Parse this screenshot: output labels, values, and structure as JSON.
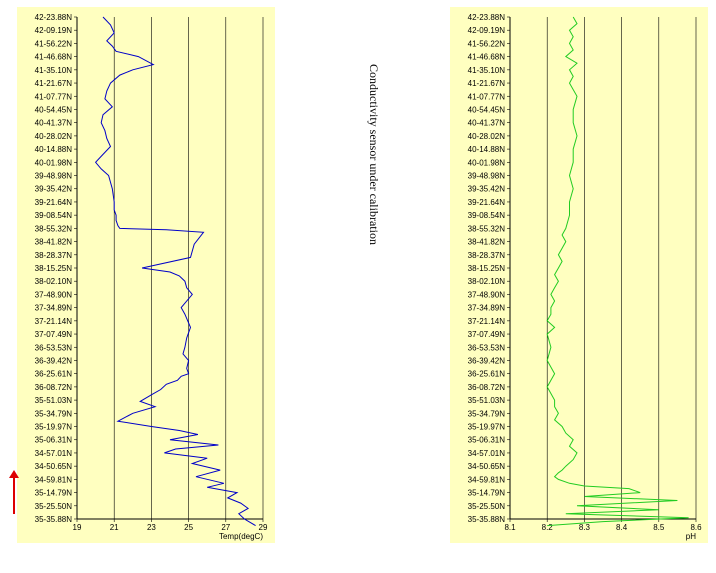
{
  "annotation": "Conductivity sensor under calibration",
  "colors": {
    "panel_bg": "#ffffc0",
    "temp_line": "#0000c8",
    "ph_line": "#22cc22",
    "arrow": "#dd0000",
    "grid": "#000000"
  },
  "chart_data": [
    {
      "type": "line",
      "orientation": "vertical-profile",
      "xlabel": "Temp(degC)",
      "xlim": [
        19,
        29
      ],
      "xticks": [
        "19",
        "21",
        "23",
        "25",
        "27",
        "29"
      ],
      "y_tick_labels": [
        "42-23.88N",
        "42-09.19N",
        "41-56.22N",
        "41-46.68N",
        "41-35.10N",
        "41-21.67N",
        "41-07.77N",
        "40-54.45N",
        "40-41.37N",
        "40-28.02N",
        "40-14.88N",
        "40-01.98N",
        "39-48.98N",
        "39-35.42N",
        "39-21.64N",
        "39-08.54N",
        "38-55.32N",
        "38-41.82N",
        "38-28.37N",
        "38-15.25N",
        "38-02.10N",
        "37-48.90N",
        "37-34.89N",
        "37-21.14N",
        "37-07.49N",
        "36-53.53N",
        "36-39.42N",
        "36-25.61N",
        "36-08.72N",
        "35-51.03N",
        "35-34.79N",
        "35-19.97N",
        "35-06.31N",
        "34-57.01N",
        "34-50.65N",
        "34-59.81N",
        "35-14.79N",
        "35-25.50N",
        "35-35.88N"
      ],
      "x": [
        20.4,
        20.8,
        21.0,
        20.6,
        20.9,
        21.1,
        22.3,
        23.1,
        22.0,
        21.3,
        20.8,
        20.6,
        20.5,
        20.9,
        20.4,
        20.3,
        20.5,
        20.6,
        20.8,
        20.4,
        20.0,
        20.3,
        20.7,
        20.9,
        21.0,
        21.0,
        21.1,
        21.1,
        21.2,
        21.3,
        23.8,
        25.8,
        25.3,
        25.1,
        22.5,
        24.0,
        24.5,
        24.8,
        24.9,
        25.2,
        24.6,
        24.8,
        25.1,
        24.9,
        24.8,
        24.7,
        25.0,
        24.9,
        25.0,
        24.6,
        24.4,
        23.8,
        23.5,
        23.0,
        22.4,
        23.2,
        22.0,
        21.2,
        23.0,
        24.5,
        25.5,
        24.0,
        26.6,
        24.3,
        23.7,
        26.0,
        25.2,
        26.7,
        25.4,
        26.9,
        26.0,
        27.6,
        27.1,
        27.8,
        28.2,
        27.7,
        28.0,
        28.6
      ],
      "y": [
        0,
        0.6,
        1.2,
        1.8,
        2.2,
        2.6,
        3.0,
        3.6,
        4.0,
        4.4,
        5.0,
        5.6,
        6.2,
        6.8,
        7.4,
        8.0,
        8.6,
        9.2,
        9.8,
        10.4,
        11.0,
        11.5,
        12.0,
        13.0,
        14.0,
        14.6,
        15.0,
        15.4,
        15.8,
        16.0,
        16.1,
        16.3,
        17.2,
        18.2,
        19.0,
        19.3,
        19.6,
        20.0,
        20.5,
        21.0,
        22.0,
        22.5,
        23.5,
        24.3,
        25.0,
        25.5,
        26.0,
        26.6,
        27.0,
        27.2,
        27.5,
        27.8,
        28.2,
        28.6,
        29.1,
        29.5,
        30.0,
        30.6,
        31.0,
        31.3,
        31.6,
        32.0,
        32.4,
        32.7,
        33.0,
        33.4,
        33.8,
        34.3,
        34.8,
        35.3,
        35.6,
        36.0,
        36.4,
        36.8,
        37.2,
        37.6,
        38.0,
        38.5
      ]
    },
    {
      "type": "line",
      "orientation": "vertical-profile",
      "xlabel": "pH",
      "xlim": [
        8.1,
        8.6
      ],
      "xticks": [
        "8.1",
        "8.2",
        "8.3",
        "8.4",
        "8.5",
        "8.6"
      ],
      "y_tick_labels": [
        "42-23.88N",
        "42-09.19N",
        "41-56.22N",
        "41-46.68N",
        "41-35.10N",
        "41-21.67N",
        "41-07.77N",
        "40-54.45N",
        "40-41.37N",
        "40-28.02N",
        "40-14.88N",
        "40-01.98N",
        "39-48.98N",
        "39-35.42N",
        "39-21.64N",
        "39-08.54N",
        "38-55.32N",
        "38-41.82N",
        "38-28.37N",
        "38-15.25N",
        "38-02.10N",
        "37-48.90N",
        "37-34.89N",
        "37-21.14N",
        "37-07.49N",
        "36-53.53N",
        "36-39.42N",
        "36-25.61N",
        "36-08.72N",
        "35-51.03N",
        "35-34.79N",
        "35-19.97N",
        "35-06.31N",
        "34-57.01N",
        "34-50.65N",
        "34-59.81N",
        "35-14.79N",
        "35-25.50N",
        "35-35.88N"
      ],
      "x": [
        8.27,
        8.28,
        8.26,
        8.27,
        8.26,
        8.27,
        8.25,
        8.28,
        8.26,
        8.27,
        8.26,
        8.28,
        8.27,
        8.27,
        8.28,
        8.27,
        8.27,
        8.26,
        8.27,
        8.26,
        8.26,
        8.25,
        8.24,
        8.25,
        8.24,
        8.23,
        8.24,
        8.23,
        8.22,
        8.23,
        8.22,
        8.21,
        8.22,
        8.21,
        8.21,
        8.2,
        8.22,
        8.2,
        8.21,
        8.2,
        8.21,
        8.22,
        8.21,
        8.2,
        8.21,
        8.22,
        8.22,
        8.23,
        8.22,
        8.24,
        8.25,
        8.27,
        8.26,
        8.28,
        8.27,
        8.25,
        8.24,
        8.23,
        8.22,
        8.23,
        8.26,
        8.3,
        8.42,
        8.45,
        8.3,
        8.55,
        8.28,
        8.5,
        8.25,
        8.58,
        8.35,
        8.2
      ],
      "y": [
        0,
        0.5,
        1.0,
        1.5,
        2.0,
        2.5,
        3.0,
        3.5,
        4.0,
        4.5,
        5.0,
        6.0,
        7.0,
        8.0,
        9.0,
        10.0,
        11.0,
        12.0,
        13.0,
        14.0,
        15.0,
        16.0,
        16.5,
        17.0,
        17.5,
        18.0,
        18.5,
        19.0,
        19.5,
        20.0,
        20.5,
        21.0,
        21.5,
        22.0,
        22.5,
        23.0,
        23.5,
        24.0,
        25.0,
        26.0,
        26.5,
        27.0,
        27.5,
        28.0,
        28.5,
        29.0,
        29.5,
        30.0,
        30.5,
        31.0,
        31.5,
        32.0,
        32.5,
        33.0,
        33.5,
        34.0,
        34.3,
        34.5,
        34.8,
        35.0,
        35.3,
        35.5,
        35.7,
        36.0,
        36.3,
        36.6,
        37.0,
        37.3,
        37.6,
        37.9,
        38.2,
        38.5
      ]
    }
  ]
}
